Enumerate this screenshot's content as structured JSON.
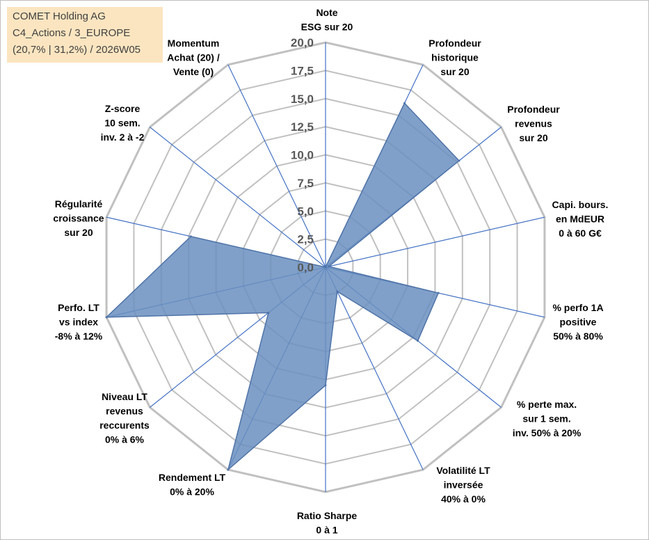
{
  "info": {
    "line1": "COMET Holding AG",
    "line2": "C4_Actions / 3_EUROPE",
    "line3": "(20,7% | 31,2%) / 2026W05"
  },
  "colors": {
    "grid": "#c0c0c0",
    "spoke": "#4472c4",
    "fill": "#6a8fbf",
    "stroke": "#4f73a8",
    "info_bg": "#fbe5c0"
  },
  "chart_data": {
    "type": "radar",
    "title": "",
    "rmin": 0,
    "rmax": 20,
    "ticks": [
      "0,0",
      "2,5",
      "5,0",
      "7,5",
      "10,0",
      "12,5",
      "15,0",
      "17,5",
      "20,0"
    ],
    "tick_values": [
      0,
      2.5,
      5,
      7.5,
      10,
      12.5,
      15,
      17.5,
      20
    ],
    "categories": [
      {
        "lines": [
          "Note",
          "ESG sur 20"
        ]
      },
      {
        "lines": [
          "Profondeur",
          "historique",
          "sur 20"
        ]
      },
      {
        "lines": [
          "Profondeur",
          "revenus",
          "sur 20"
        ]
      },
      {
        "lines": [
          "Capi. bours.",
          "en MdEUR",
          "0 à 60 G€"
        ]
      },
      {
        "lines": [
          "% perfo 1A",
          "positive",
          "50% à 80%"
        ]
      },
      {
        "lines": [
          "% perte max.",
          "sur 1 sem.",
          "inv. 50% à 20%"
        ]
      },
      {
        "lines": [
          "Volatilité LT",
          "inversée",
          "40% à 0%"
        ]
      },
      {
        "lines": [
          "Ratio Sharpe",
          "0 à 1"
        ]
      },
      {
        "lines": [
          "Rendement LT",
          "0% à 20%"
        ]
      },
      {
        "lines": [
          "Niveau LT",
          "revenus",
          "reccurents",
          "0% à 6%"
        ]
      },
      {
        "lines": [
          "Perfo. LT",
          "vs index",
          "-8% à 12%"
        ]
      },
      {
        "lines": [
          "Régularité",
          "croissance",
          "sur 20"
        ]
      },
      {
        "lines": [
          "Z-score",
          "10 sem.",
          "inv. 2 à -2"
        ]
      },
      {
        "lines": [
          "Momentum",
          "Achat (20) /",
          "Vente (0)"
        ]
      }
    ],
    "series": [
      {
        "name": "COMET Holding AG",
        "values": [
          0,
          16.2,
          15.2,
          0.3,
          10.3,
          10.5,
          2.4,
          10.5,
          20,
          6.5,
          20,
          12.3,
          0,
          0
        ]
      }
    ]
  }
}
